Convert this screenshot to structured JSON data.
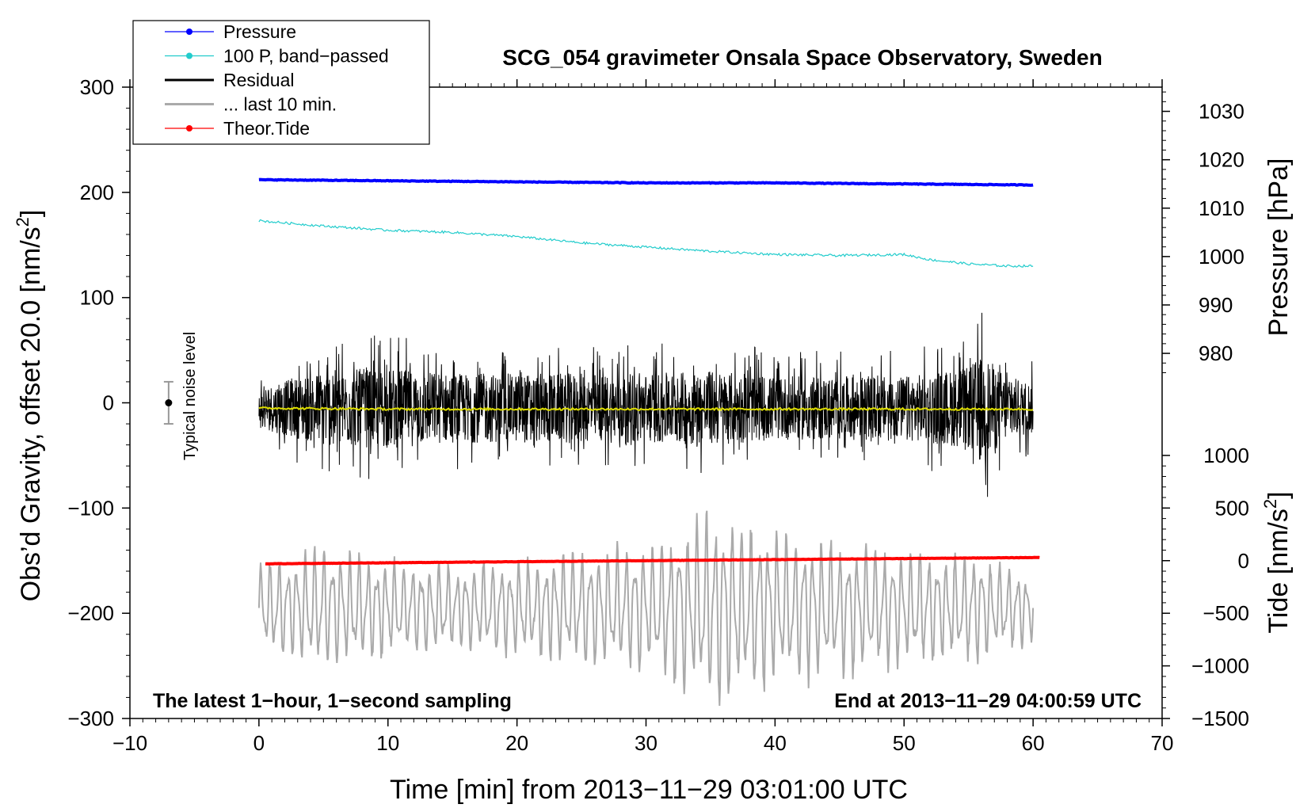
{
  "chart_data": {
    "type": "line",
    "title": "SCG_054 gravimeter Onsala Space Observatory, Sweden",
    "xlabel": "Time [min] from 2013−11−29 03:01:00 UTC",
    "ylabel": "Obs’d Gravity, offset 20.0 [nm/s",
    "ylabel_sup": "2",
    "ylabel_end": "]",
    "y2label": "Pressure [hPa]",
    "y3label": "Tide [nm/s",
    "y3label_sup": "2",
    "y3label_end": "]",
    "xlim": [
      -10,
      70
    ],
    "ylim": [
      -300,
      300
    ],
    "x_ticks": [
      -10,
      0,
      10,
      20,
      30,
      40,
      50,
      60,
      70
    ],
    "x_tick_labels": [
      "−10",
      "0",
      "10",
      "20",
      "30",
      "40",
      "50",
      "60",
      "70"
    ],
    "y_ticks": [
      300,
      200,
      100,
      0,
      -100,
      -200,
      -300
    ],
    "y_tick_labels": [
      "300",
      "200",
      "100",
      "0",
      "−100",
      "−200",
      "−300"
    ],
    "pressure_axis": {
      "ticks": [
        1030,
        1020,
        1010,
        1000,
        990,
        980
      ],
      "tick_labels": [
        "1030",
        "1020",
        "1010",
        "1000",
        "990",
        "980"
      ],
      "gravity_at_1030": 277,
      "gravity_per_hPa": 4.6
    },
    "tide_axis": {
      "ticks": [
        1000,
        500,
        0,
        -500,
        -1000,
        -1500
      ],
      "tick_labels": [
        "1000",
        "500",
        "0",
        "−500",
        "−1000",
        "−1500"
      ],
      "gravity_at_0": -150,
      "gravity_per_nms2": 0.1
    },
    "legend": [
      {
        "label": "Pressure",
        "color": "#0000ff",
        "marker": true
      },
      {
        "label": "100 P, band−passed",
        "color": "#22cccc",
        "marker": true
      },
      {
        "label": "Residual",
        "color": "#000000",
        "marker": false
      },
      {
        "label": "... last 10 min.",
        "color": "#aaaaaa",
        "marker": false
      },
      {
        "label": "Theor.Tide",
        "color": "#ff0000",
        "marker": true
      }
    ],
    "legend_position": "top-left",
    "annotation_left": "The latest 1−hour, 1−second sampling",
    "annotation_right": "End at 2013−11−29 04:00:59 UTC",
    "noise_label": "Typical noise level",
    "noise_bar": {
      "x": -7,
      "y": 0,
      "low": -20,
      "high": 20
    },
    "series": [
      {
        "name": "Pressure",
        "color": "#0000ff",
        "x": [
          0,
          10,
          20,
          30,
          40,
          50,
          60
        ],
        "y": [
          212,
          211,
          210,
          209,
          209,
          208,
          207
        ]
      },
      {
        "name": "100 P, band−passed",
        "color": "#22cccc",
        "x": [
          0,
          5,
          10,
          15,
          20,
          25,
          30,
          35,
          40,
          45,
          50,
          52,
          55,
          58,
          60
        ],
        "y": [
          173,
          168,
          164,
          162,
          158,
          152,
          148,
          144,
          141,
          140,
          141,
          136,
          132,
          130,
          130
        ]
      },
      {
        "name": "Residual",
        "color": "#000000",
        "x_range": [
          0,
          60
        ],
        "envelope": [
          [
            0,
            35
          ],
          [
            5,
            65
          ],
          [
            10,
            70
          ],
          [
            15,
            60
          ],
          [
            20,
            60
          ],
          [
            25,
            60
          ],
          [
            30,
            60
          ],
          [
            35,
            65
          ],
          [
            40,
            55
          ],
          [
            45,
            55
          ],
          [
            50,
            55
          ],
          [
            55,
            70
          ],
          [
            56,
            95
          ],
          [
            58,
            55
          ],
          [
            60,
            45
          ]
        ]
      },
      {
        "name": "Residual mean",
        "color": "#dddd00",
        "x": [
          0,
          10,
          20,
          30,
          40,
          50,
          60
        ],
        "y": [
          -5,
          -6,
          -6,
          -6,
          -6,
          -6,
          -6
        ]
      },
      {
        "name": "... last 10 min.",
        "color": "#aaaaaa",
        "x_range": [
          0,
          60
        ],
        "center": -195,
        "envelope": [
          [
            0,
            45
          ],
          [
            5,
            65
          ],
          [
            10,
            50
          ],
          [
            15,
            45
          ],
          [
            20,
            50
          ],
          [
            25,
            60
          ],
          [
            30,
            65
          ],
          [
            35,
            105
          ],
          [
            40,
            80
          ],
          [
            45,
            70
          ],
          [
            50,
            60
          ],
          [
            55,
            60
          ],
          [
            60,
            35
          ]
        ]
      },
      {
        "name": "Theor.Tide",
        "color": "#ff0000",
        "x": [
          0.5,
          10,
          20,
          30,
          40,
          50,
          60.5
        ],
        "y": [
          -153,
          -152,
          -151,
          -150,
          -149,
          -148,
          -147
        ]
      }
    ]
  }
}
